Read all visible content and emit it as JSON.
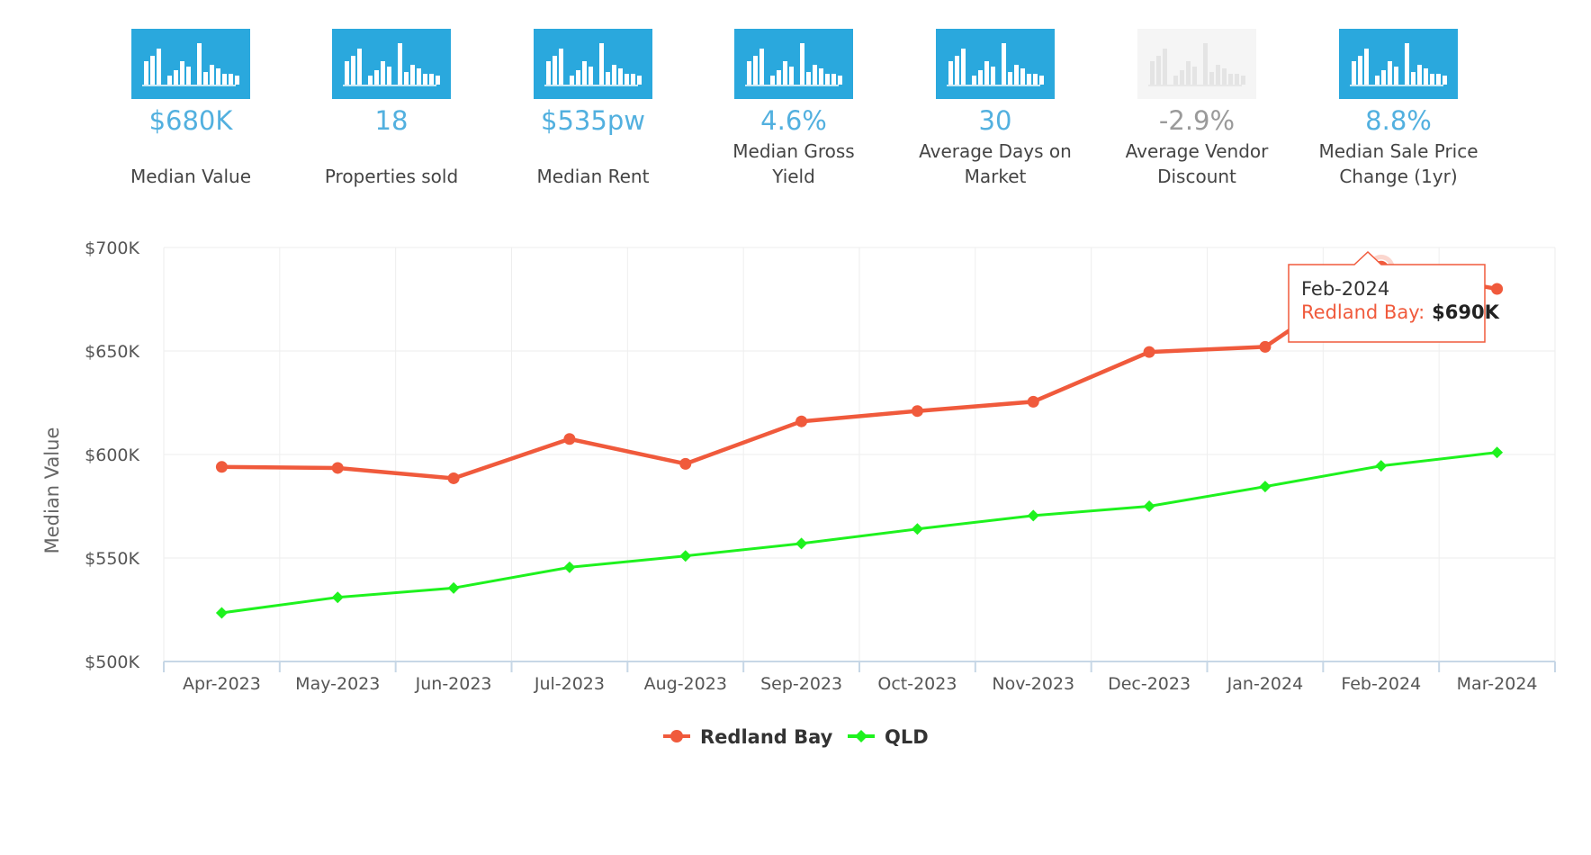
{
  "stats": [
    {
      "value": "$680K",
      "label": "Median Value",
      "muted": false
    },
    {
      "value": "18",
      "label": "Properties sold",
      "muted": false
    },
    {
      "value": "$535pw",
      "label": "Median Rent",
      "muted": false
    },
    {
      "value": "4.6%",
      "label": "Median Gross\nYield",
      "muted": false
    },
    {
      "value": "30",
      "label": "Average Days on\nMarket",
      "muted": false
    },
    {
      "value": "-2.9%",
      "label": "Average Vendor\nDiscount",
      "muted": true
    },
    {
      "value": "8.8%",
      "label": "Median Sale Price\nChange (1yr)",
      "muted": false
    }
  ],
  "colors": {
    "stat_icon": "#2aa8dd",
    "stat_icon_muted": "#f5f5f5",
    "stat_value": "#52b0df",
    "redland_bay": "#f05a3c",
    "qld": "#1ef21e",
    "grid": "#eeeeee",
    "axis": "#c7d7e6"
  },
  "chart_data": {
    "type": "line",
    "title": "",
    "xlabel": "",
    "ylabel": "Median Value",
    "categories": [
      "Apr-2023",
      "May-2023",
      "Jun-2023",
      "Jul-2023",
      "Aug-2023",
      "Sep-2023",
      "Oct-2023",
      "Nov-2023",
      "Dec-2023",
      "Jan-2024",
      "Feb-2024",
      "Mar-2024"
    ],
    "ylim": [
      500000,
      700000
    ],
    "yticks": [
      {
        "value": 700000,
        "label": "$700K"
      },
      {
        "value": 650000,
        "label": "$650K"
      },
      {
        "value": 600000,
        "label": "$600K"
      },
      {
        "value": 550000,
        "label": "$550K"
      },
      {
        "value": 500000,
        "label": "$500K"
      }
    ],
    "grid": true,
    "legend_position": "bottom-center",
    "series": [
      {
        "name": "Redland Bay",
        "color": "#f05a3c",
        "marker": "circle",
        "values": [
          594000,
          593500,
          588500,
          607500,
          595500,
          616000,
          621000,
          625500,
          649500,
          652000,
          690000,
          680000
        ]
      },
      {
        "name": "QLD",
        "color": "#1ef21e",
        "marker": "diamond",
        "values": [
          523500,
          531000,
          535500,
          545500,
          551000,
          557000,
          564000,
          570500,
          575000,
          584500,
          594500,
          601000
        ]
      }
    ],
    "tooltip": {
      "category_index": 10,
      "title": "Feb-2024",
      "series_label": "Redland Bay:",
      "value_label": "$690K"
    }
  }
}
